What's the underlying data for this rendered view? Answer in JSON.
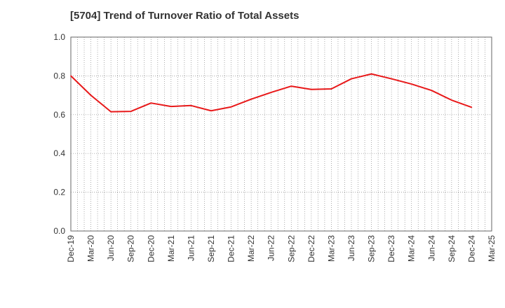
{
  "chart_data": {
    "type": "line",
    "title": "[5704]  Trend of Turnover Ratio of Total Assets",
    "xlabel": "",
    "ylabel": "",
    "ylim": [
      0,
      1.0
    ],
    "yticks": [
      "0.0",
      "0.2",
      "0.4",
      "0.6",
      "0.8",
      "1.0"
    ],
    "categories": [
      "Dec-19",
      "Mar-20",
      "Jun-20",
      "Sep-20",
      "Dec-20",
      "Mar-21",
      "Jun-21",
      "Sep-21",
      "Dec-21",
      "Mar-22",
      "Jun-22",
      "Sep-22",
      "Dec-22",
      "Mar-23",
      "Jun-23",
      "Sep-23",
      "Dec-23",
      "Mar-24",
      "Jun-24",
      "Sep-24",
      "Dec-24",
      "Mar-25"
    ],
    "series": [
      {
        "color": "#e8191a",
        "values": [
          0.8,
          0.7,
          0.615,
          0.617,
          0.66,
          0.642,
          0.647,
          0.62,
          0.64,
          0.68,
          0.715,
          0.747,
          0.73,
          0.733,
          0.785,
          0.81,
          0.785,
          0.758,
          0.725,
          0.675,
          0.638,
          null
        ]
      }
    ],
    "grid": true,
    "grid_color": "#888888",
    "legend": "none"
  }
}
